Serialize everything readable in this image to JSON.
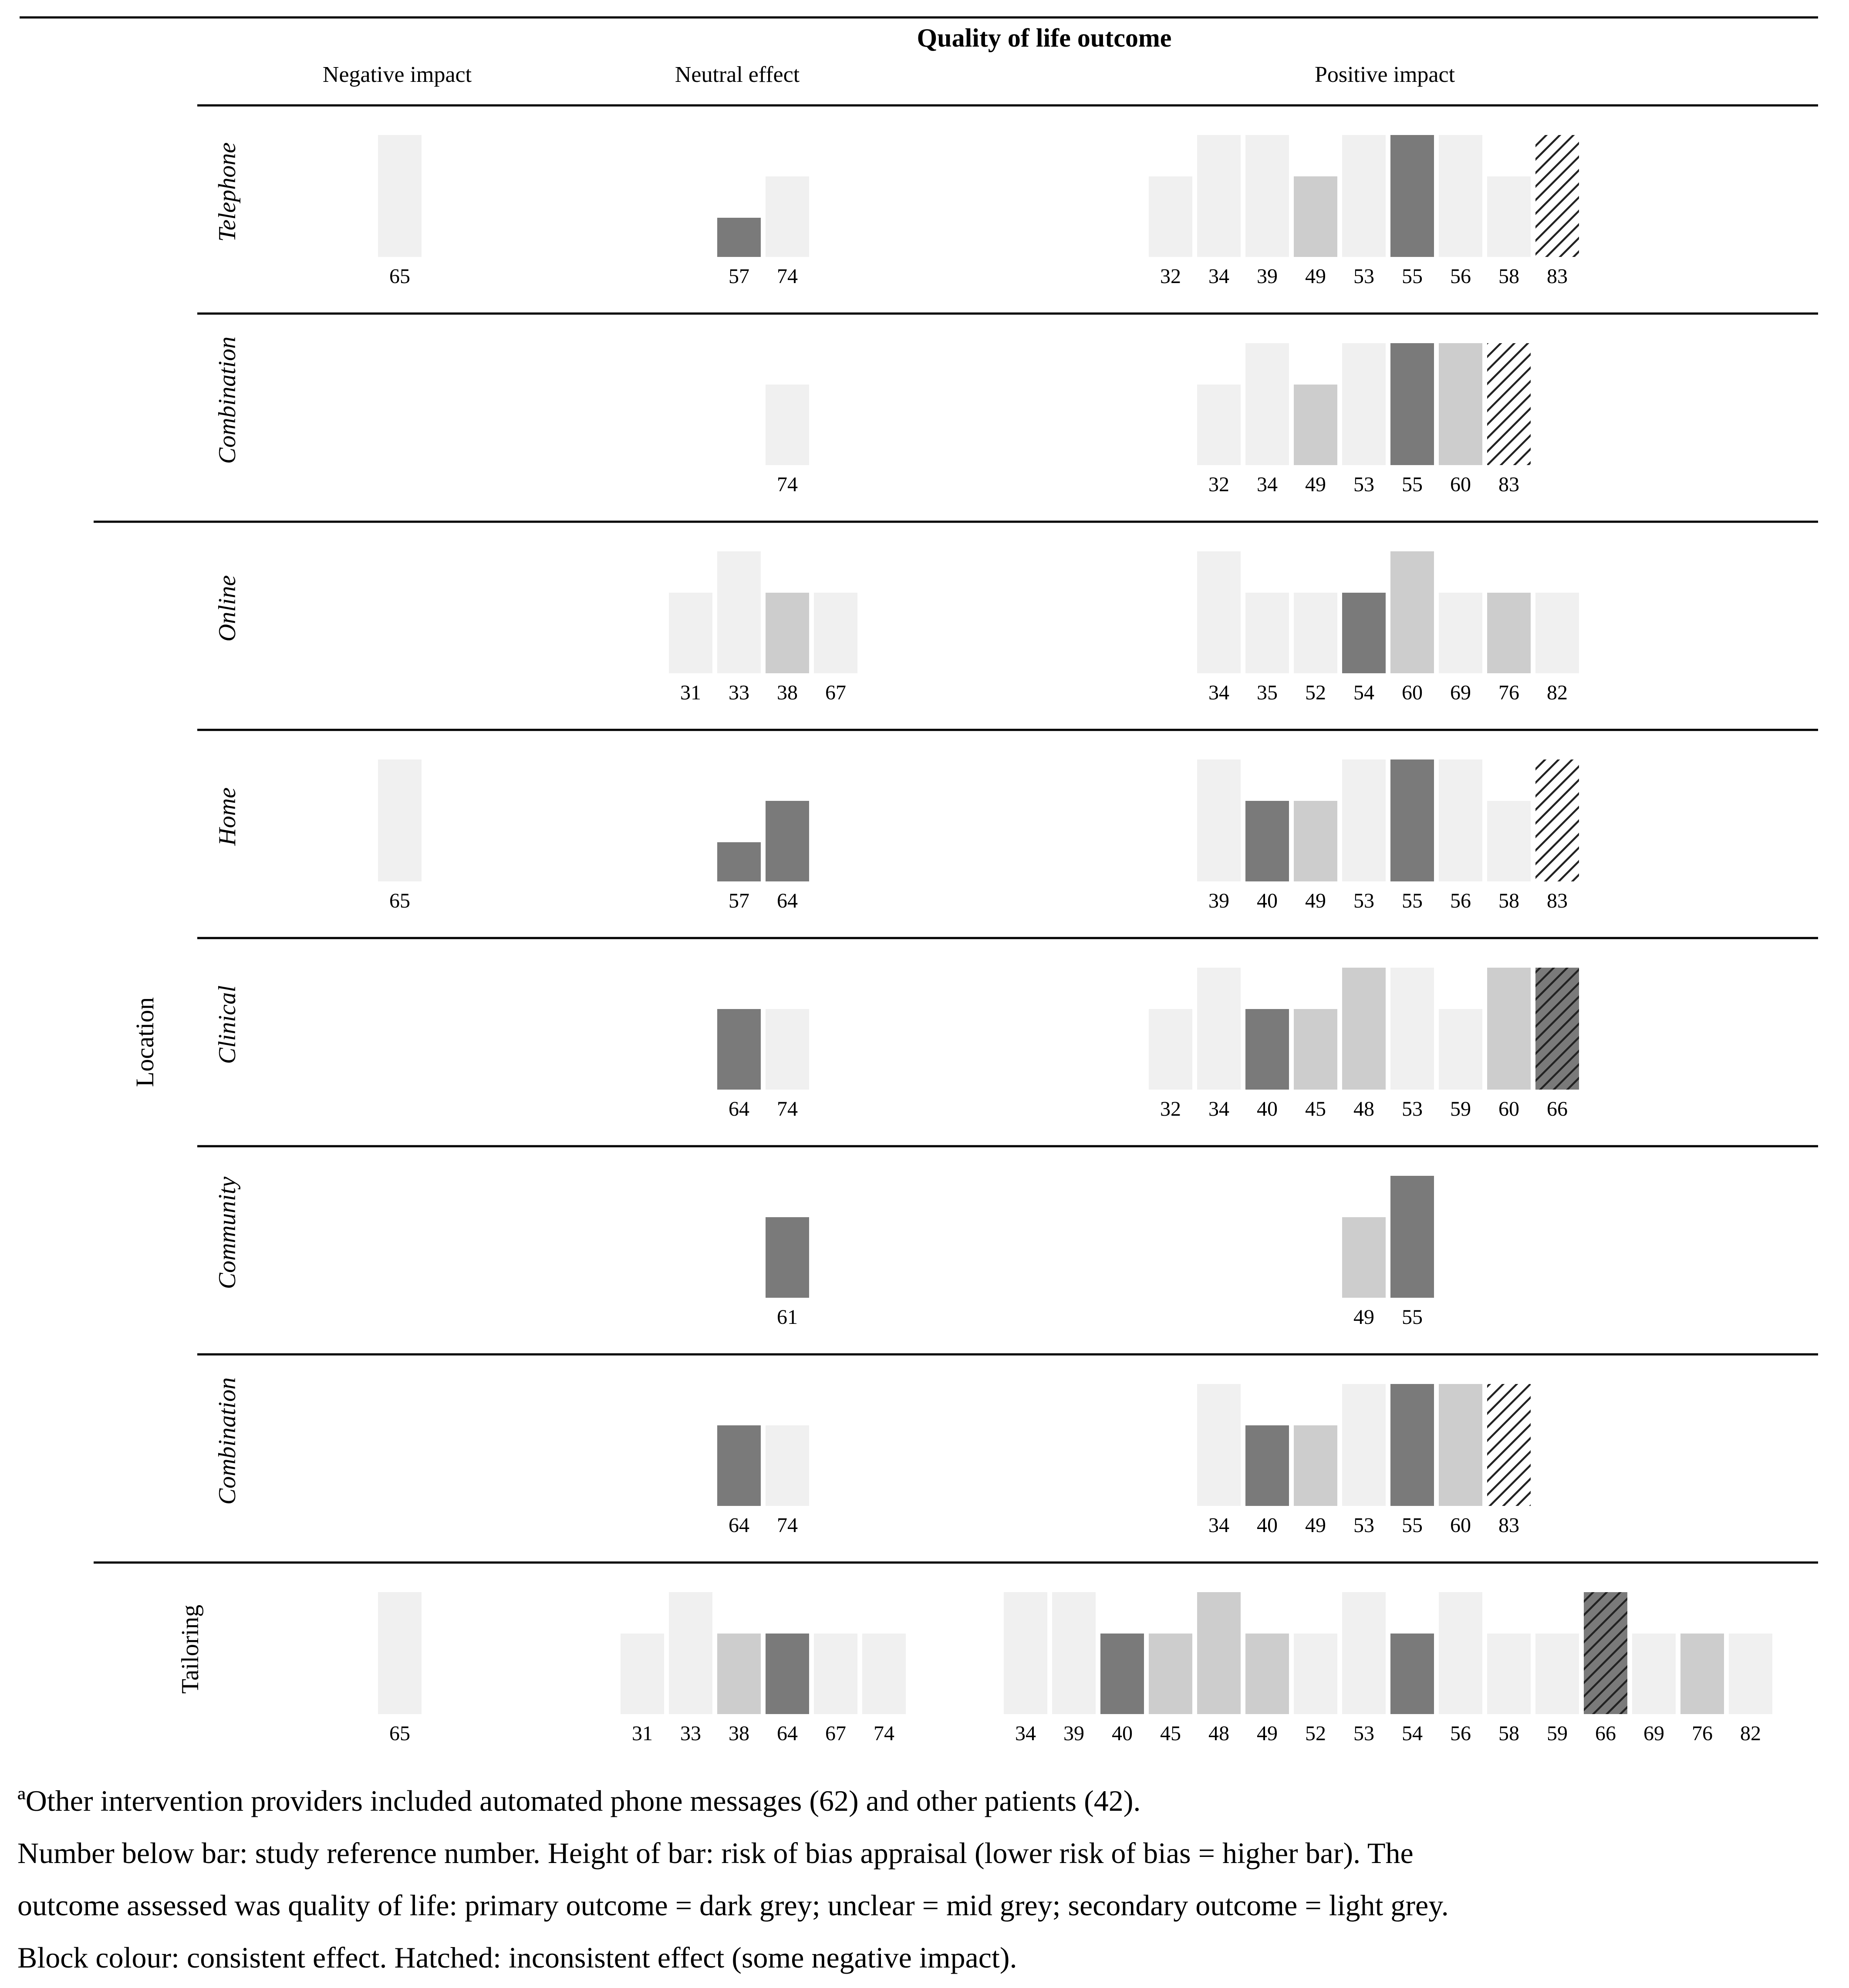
{
  "chart_data": {
    "type": "bar",
    "title": "Quality of life outcome",
    "columns": [
      "Negative impact",
      "Neutral effect",
      "Positive impact"
    ],
    "group_label": "Location",
    "height_scale": [
      "low",
      "medium",
      "high"
    ],
    "legend": {
      "primary": "primary outcome = dark grey",
      "unclear": "unclear = mid grey",
      "secondary": "secondary outcome = light grey",
      "hatched": "inconsistent effect (some negative impact)"
    },
    "rows": [
      {
        "label": "Telephone",
        "italic": true,
        "bars": [
          {
            "col": 0,
            "slot": 0,
            "ref": "65",
            "height": "high",
            "outcome": "secondary",
            "hatched": false
          },
          {
            "col": 1,
            "slot": 2,
            "ref": "57",
            "height": "low",
            "outcome": "primary",
            "hatched": false
          },
          {
            "col": 1,
            "slot": 3,
            "ref": "74",
            "height": "medium",
            "outcome": "secondary",
            "hatched": false
          },
          {
            "col": 2,
            "slot": 3,
            "ref": "32",
            "height": "medium",
            "outcome": "secondary",
            "hatched": false
          },
          {
            "col": 2,
            "slot": 4,
            "ref": "34",
            "height": "high",
            "outcome": "secondary",
            "hatched": false
          },
          {
            "col": 2,
            "slot": 5,
            "ref": "39",
            "height": "high",
            "outcome": "secondary",
            "hatched": false
          },
          {
            "col": 2,
            "slot": 6,
            "ref": "49",
            "height": "medium",
            "outcome": "unclear",
            "hatched": false
          },
          {
            "col": 2,
            "slot": 7,
            "ref": "53",
            "height": "high",
            "outcome": "secondary",
            "hatched": false
          },
          {
            "col": 2,
            "slot": 8,
            "ref": "55",
            "height": "high",
            "outcome": "primary",
            "hatched": false
          },
          {
            "col": 2,
            "slot": 9,
            "ref": "56",
            "height": "high",
            "outcome": "secondary",
            "hatched": false
          },
          {
            "col": 2,
            "slot": 10,
            "ref": "58",
            "height": "medium",
            "outcome": "secondary",
            "hatched": false
          },
          {
            "col": 2,
            "slot": 11,
            "ref": "83",
            "height": "high",
            "outcome": "secondary",
            "hatched": true
          }
        ]
      },
      {
        "label": "Combination",
        "italic": true,
        "bars": [
          {
            "col": 1,
            "slot": 3,
            "ref": "74",
            "height": "medium",
            "outcome": "secondary",
            "hatched": false
          },
          {
            "col": 2,
            "slot": 4,
            "ref": "32",
            "height": "medium",
            "outcome": "secondary",
            "hatched": false
          },
          {
            "col": 2,
            "slot": 5,
            "ref": "34",
            "height": "high",
            "outcome": "secondary",
            "hatched": false
          },
          {
            "col": 2,
            "slot": 6,
            "ref": "49",
            "height": "medium",
            "outcome": "unclear",
            "hatched": false
          },
          {
            "col": 2,
            "slot": 7,
            "ref": "53",
            "height": "high",
            "outcome": "secondary",
            "hatched": false
          },
          {
            "col": 2,
            "slot": 8,
            "ref": "55",
            "height": "high",
            "outcome": "primary",
            "hatched": false
          },
          {
            "col": 2,
            "slot": 9,
            "ref": "60",
            "height": "high",
            "outcome": "unclear",
            "hatched": false
          },
          {
            "col": 2,
            "slot": 10,
            "ref": "83",
            "height": "high",
            "outcome": "secondary",
            "hatched": true
          }
        ]
      },
      {
        "label": "Online",
        "italic": true,
        "bars": [
          {
            "col": 1,
            "slot": 1,
            "ref": "31",
            "height": "medium",
            "outcome": "secondary",
            "hatched": false
          },
          {
            "col": 1,
            "slot": 2,
            "ref": "33",
            "height": "high",
            "outcome": "secondary",
            "hatched": false
          },
          {
            "col": 1,
            "slot": 3,
            "ref": "38",
            "height": "medium",
            "outcome": "unclear",
            "hatched": false
          },
          {
            "col": 1,
            "slot": 4,
            "ref": "67",
            "height": "medium",
            "outcome": "secondary",
            "hatched": false
          },
          {
            "col": 2,
            "slot": 4,
            "ref": "34",
            "height": "high",
            "outcome": "secondary",
            "hatched": false
          },
          {
            "col": 2,
            "slot": 5,
            "ref": "35",
            "height": "medium",
            "outcome": "secondary",
            "hatched": false
          },
          {
            "col": 2,
            "slot": 6,
            "ref": "52",
            "height": "medium",
            "outcome": "secondary",
            "hatched": false
          },
          {
            "col": 2,
            "slot": 7,
            "ref": "54",
            "height": "medium",
            "outcome": "primary",
            "hatched": false
          },
          {
            "col": 2,
            "slot": 8,
            "ref": "60",
            "height": "high",
            "outcome": "unclear",
            "hatched": false
          },
          {
            "col": 2,
            "slot": 9,
            "ref": "69",
            "height": "medium",
            "outcome": "secondary",
            "hatched": false
          },
          {
            "col": 2,
            "slot": 10,
            "ref": "76",
            "height": "medium",
            "outcome": "unclear",
            "hatched": false
          },
          {
            "col": 2,
            "slot": 11,
            "ref": "82",
            "height": "medium",
            "outcome": "secondary",
            "hatched": false
          }
        ]
      },
      {
        "label": "Home",
        "italic": true,
        "bars": [
          {
            "col": 0,
            "slot": 0,
            "ref": "65",
            "height": "high",
            "outcome": "secondary",
            "hatched": false
          },
          {
            "col": 1,
            "slot": 2,
            "ref": "57",
            "height": "low",
            "outcome": "primary",
            "hatched": false
          },
          {
            "col": 1,
            "slot": 3,
            "ref": "64",
            "height": "medium",
            "outcome": "primary",
            "hatched": false
          },
          {
            "col": 2,
            "slot": 4,
            "ref": "39",
            "height": "high",
            "outcome": "secondary",
            "hatched": false
          },
          {
            "col": 2,
            "slot": 5,
            "ref": "40",
            "height": "medium",
            "outcome": "primary",
            "hatched": false
          },
          {
            "col": 2,
            "slot": 6,
            "ref": "49",
            "height": "medium",
            "outcome": "unclear",
            "hatched": false
          },
          {
            "col": 2,
            "slot": 7,
            "ref": "53",
            "height": "high",
            "outcome": "secondary",
            "hatched": false
          },
          {
            "col": 2,
            "slot": 8,
            "ref": "55",
            "height": "high",
            "outcome": "primary",
            "hatched": false
          },
          {
            "col": 2,
            "slot": 9,
            "ref": "56",
            "height": "high",
            "outcome": "secondary",
            "hatched": false
          },
          {
            "col": 2,
            "slot": 10,
            "ref": "58",
            "height": "medium",
            "outcome": "secondary",
            "hatched": false
          },
          {
            "col": 2,
            "slot": 11,
            "ref": "83",
            "height": "high",
            "outcome": "secondary",
            "hatched": true
          }
        ]
      },
      {
        "label": "Clinical",
        "italic": true,
        "bars": [
          {
            "col": 1,
            "slot": 2,
            "ref": "64",
            "height": "medium",
            "outcome": "primary",
            "hatched": false
          },
          {
            "col": 1,
            "slot": 3,
            "ref": "74",
            "height": "medium",
            "outcome": "secondary",
            "hatched": false
          },
          {
            "col": 2,
            "slot": 3,
            "ref": "32",
            "height": "medium",
            "outcome": "secondary",
            "hatched": false
          },
          {
            "col": 2,
            "slot": 4,
            "ref": "34",
            "height": "high",
            "outcome": "secondary",
            "hatched": false
          },
          {
            "col": 2,
            "slot": 5,
            "ref": "40",
            "height": "medium",
            "outcome": "primary",
            "hatched": false
          },
          {
            "col": 2,
            "slot": 6,
            "ref": "45",
            "height": "medium",
            "outcome": "unclear",
            "hatched": false
          },
          {
            "col": 2,
            "slot": 7,
            "ref": "48",
            "height": "high",
            "outcome": "unclear",
            "hatched": false
          },
          {
            "col": 2,
            "slot": 8,
            "ref": "53",
            "height": "high",
            "outcome": "secondary",
            "hatched": false
          },
          {
            "col": 2,
            "slot": 9,
            "ref": "59",
            "height": "medium",
            "outcome": "secondary",
            "hatched": false
          },
          {
            "col": 2,
            "slot": 10,
            "ref": "60",
            "height": "high",
            "outcome": "unclear",
            "hatched": false
          },
          {
            "col": 2,
            "slot": 11,
            "ref": "66",
            "height": "high",
            "outcome": "primary",
            "hatched": true
          }
        ]
      },
      {
        "label": "Community",
        "italic": true,
        "bars": [
          {
            "col": 1,
            "slot": 3,
            "ref": "61",
            "height": "medium",
            "outcome": "primary",
            "hatched": false
          },
          {
            "col": 2,
            "slot": 7,
            "ref": "49",
            "height": "medium",
            "outcome": "unclear",
            "hatched": false
          },
          {
            "col": 2,
            "slot": 8,
            "ref": "55",
            "height": "high",
            "outcome": "primary",
            "hatched": false
          }
        ]
      },
      {
        "label": "Combination",
        "italic": true,
        "bars": [
          {
            "col": 1,
            "slot": 2,
            "ref": "64",
            "height": "medium",
            "outcome": "primary",
            "hatched": false
          },
          {
            "col": 1,
            "slot": 3,
            "ref": "74",
            "height": "medium",
            "outcome": "secondary",
            "hatched": false
          },
          {
            "col": 2,
            "slot": 4,
            "ref": "34",
            "height": "high",
            "outcome": "secondary",
            "hatched": false
          },
          {
            "col": 2,
            "slot": 5,
            "ref": "40",
            "height": "medium",
            "outcome": "primary",
            "hatched": false
          },
          {
            "col": 2,
            "slot": 6,
            "ref": "49",
            "height": "medium",
            "outcome": "unclear",
            "hatched": false
          },
          {
            "col": 2,
            "slot": 7,
            "ref": "53",
            "height": "high",
            "outcome": "secondary",
            "hatched": false
          },
          {
            "col": 2,
            "slot": 8,
            "ref": "55",
            "height": "high",
            "outcome": "primary",
            "hatched": false
          },
          {
            "col": 2,
            "slot": 9,
            "ref": "60",
            "height": "high",
            "outcome": "unclear",
            "hatched": false
          },
          {
            "col": 2,
            "slot": 10,
            "ref": "83",
            "height": "high",
            "outcome": "secondary",
            "hatched": true
          }
        ]
      },
      {
        "label": "Tailoring",
        "italic": false,
        "bars": [
          {
            "col": 0,
            "slot": 0,
            "ref": "65",
            "height": "high",
            "outcome": "secondary",
            "hatched": false
          },
          {
            "col": 1,
            "slot": 0,
            "ref": "31",
            "height": "medium",
            "outcome": "secondary",
            "hatched": false
          },
          {
            "col": 1,
            "slot": 1,
            "ref": "33",
            "height": "high",
            "outcome": "secondary",
            "hatched": false
          },
          {
            "col": 1,
            "slot": 2,
            "ref": "38",
            "height": "medium",
            "outcome": "unclear",
            "hatched": false
          },
          {
            "col": 1,
            "slot": 3,
            "ref": "64",
            "height": "medium",
            "outcome": "primary",
            "hatched": false
          },
          {
            "col": 1,
            "slot": 4,
            "ref": "67",
            "height": "medium",
            "outcome": "secondary",
            "hatched": false
          },
          {
            "col": 1,
            "slot": 5,
            "ref": "74",
            "height": "medium",
            "outcome": "secondary",
            "hatched": false
          },
          {
            "col": 2,
            "slot": 0,
            "ref": "34",
            "height": "high",
            "outcome": "secondary",
            "hatched": false
          },
          {
            "col": 2,
            "slot": 1,
            "ref": "39",
            "height": "high",
            "outcome": "secondary",
            "hatched": false
          },
          {
            "col": 2,
            "slot": 2,
            "ref": "40",
            "height": "medium",
            "outcome": "primary",
            "hatched": false
          },
          {
            "col": 2,
            "slot": 3,
            "ref": "45",
            "height": "medium",
            "outcome": "unclear",
            "hatched": false
          },
          {
            "col": 2,
            "slot": 4,
            "ref": "48",
            "height": "high",
            "outcome": "unclear",
            "hatched": false
          },
          {
            "col": 2,
            "slot": 5,
            "ref": "49",
            "height": "medium",
            "outcome": "unclear",
            "hatched": false
          },
          {
            "col": 2,
            "slot": 6,
            "ref": "52",
            "height": "medium",
            "outcome": "secondary",
            "hatched": false
          },
          {
            "col": 2,
            "slot": 7,
            "ref": "53",
            "height": "high",
            "outcome": "secondary",
            "hatched": false
          },
          {
            "col": 2,
            "slot": 8,
            "ref": "54",
            "height": "medium",
            "outcome": "primary",
            "hatched": false
          },
          {
            "col": 2,
            "slot": 9,
            "ref": "56",
            "height": "high",
            "outcome": "secondary",
            "hatched": false
          },
          {
            "col": 2,
            "slot": 10,
            "ref": "58",
            "height": "medium",
            "outcome": "secondary",
            "hatched": false
          },
          {
            "col": 2,
            "slot": 11,
            "ref": "59",
            "height": "medium",
            "outcome": "secondary",
            "hatched": false
          },
          {
            "col": 2,
            "slot": 12,
            "ref": "66",
            "height": "high",
            "outcome": "primary",
            "hatched": true
          },
          {
            "col": 2,
            "slot": 13,
            "ref": "69",
            "height": "medium",
            "outcome": "secondary",
            "hatched": false
          },
          {
            "col": 2,
            "slot": 14,
            "ref": "76",
            "height": "medium",
            "outcome": "unclear",
            "hatched": false
          },
          {
            "col": 2,
            "slot": 15,
            "ref": "82",
            "height": "medium",
            "outcome": "secondary",
            "hatched": false
          }
        ]
      }
    ]
  },
  "colors": {
    "primary": "#7a7a7a",
    "unclear": "#cdcdcd",
    "secondary": "#f0f0f0",
    "line": "#000000"
  },
  "footnotes": {
    "line1": "ªOther intervention providers included automated phone messages (62) and other patients (42).",
    "line2": "Number below bar: study reference number. Height of bar: risk of bias appraisal (lower risk of bias = higher bar). The",
    "line3": "outcome assessed was quality of life: primary outcome = dark grey; unclear = mid grey; secondary outcome = light grey.",
    "line4": "Block colour: consistent effect. Hatched: inconsistent effect (some negative impact)."
  }
}
